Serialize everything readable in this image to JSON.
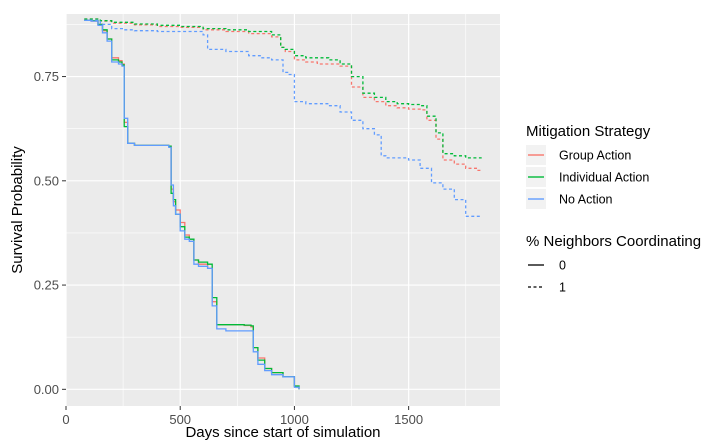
{
  "chart_data": {
    "type": "line",
    "title": "",
    "xlabel": "Days since start of simulation",
    "ylabel": "Survival Probability",
    "xlim": [
      0,
      1900
    ],
    "ylim": [
      -0.04,
      0.9
    ],
    "x_ticks": [
      0,
      500,
      1000,
      1500
    ],
    "y_ticks": [
      0.0,
      0.25,
      0.5,
      0.75
    ],
    "y_tick_labels": [
      "0.00",
      "0.25",
      "0.50",
      "0.75"
    ],
    "grid": true,
    "panel_background": "#ebebeb",
    "legend_position": "right",
    "legends": [
      {
        "title": "Mitigation Strategy",
        "entries": [
          {
            "label": "Group Action",
            "color": "#f8766d"
          },
          {
            "label": "Individual Action",
            "color": "#00ba38"
          },
          {
            "label": "No Action",
            "color": "#619cff"
          }
        ]
      },
      {
        "title": "% Neighbors Coordinating",
        "entries": [
          {
            "label": "0",
            "linetype": "solid"
          },
          {
            "label": "1",
            "linetype": "dashed"
          }
        ]
      }
    ],
    "series": [
      {
        "strategy": "Group Action",
        "coordinating": "0",
        "color": "#f8766d",
        "linetype": "solid",
        "x": [
          80,
          110,
          140,
          160,
          180,
          200,
          230,
          245,
          255,
          270,
          300,
          400,
          450,
          460,
          470,
          480,
          500,
          520,
          540,
          560,
          580,
          620,
          640,
          660,
          700,
          780,
          810,
          820,
          840,
          870,
          900,
          950,
          1000,
          1020
        ],
        "y": [
          0.885,
          0.883,
          0.875,
          0.86,
          0.84,
          0.795,
          0.788,
          0.78,
          0.64,
          0.59,
          0.585,
          0.585,
          0.583,
          0.48,
          0.45,
          0.43,
          0.4,
          0.37,
          0.36,
          0.31,
          0.3,
          0.29,
          0.21,
          0.155,
          0.155,
          0.153,
          0.15,
          0.1,
          0.075,
          0.05,
          0.04,
          0.03,
          0.008,
          0.0
        ]
      },
      {
        "strategy": "Individual Action",
        "coordinating": "0",
        "color": "#00ba38",
        "linetype": "solid",
        "x": [
          80,
          110,
          140,
          160,
          180,
          200,
          230,
          245,
          255,
          270,
          300,
          400,
          450,
          460,
          470,
          480,
          500,
          520,
          540,
          560,
          580,
          620,
          640,
          660,
          700,
          780,
          810,
          820,
          840,
          870,
          900,
          950,
          1000,
          1020
        ],
        "y": [
          0.885,
          0.884,
          0.875,
          0.862,
          0.84,
          0.79,
          0.785,
          0.778,
          0.63,
          0.59,
          0.585,
          0.585,
          0.583,
          0.47,
          0.455,
          0.42,
          0.39,
          0.365,
          0.36,
          0.31,
          0.305,
          0.3,
          0.22,
          0.155,
          0.155,
          0.154,
          0.152,
          0.1,
          0.07,
          0.05,
          0.04,
          0.03,
          0.008,
          0.0
        ]
      },
      {
        "strategy": "No Action",
        "coordinating": "0",
        "color": "#619cff",
        "linetype": "solid",
        "x": [
          80,
          110,
          140,
          160,
          180,
          200,
          230,
          245,
          255,
          270,
          300,
          400,
          450,
          460,
          470,
          480,
          500,
          520,
          540,
          560,
          580,
          620,
          640,
          660,
          700,
          780,
          810,
          820,
          840,
          870,
          900,
          950,
          1000,
          1020
        ],
        "y": [
          0.885,
          0.883,
          0.873,
          0.855,
          0.835,
          0.785,
          0.78,
          0.775,
          0.65,
          0.59,
          0.585,
          0.585,
          0.58,
          0.49,
          0.44,
          0.42,
          0.38,
          0.36,
          0.355,
          0.3,
          0.295,
          0.29,
          0.2,
          0.145,
          0.14,
          0.14,
          0.14,
          0.09,
          0.06,
          0.045,
          0.035,
          0.03,
          0.005,
          0.0
        ]
      },
      {
        "strategy": "Group Action",
        "coordinating": "1",
        "color": "#f8766d",
        "linetype": "dashed",
        "x": [
          80,
          150,
          200,
          300,
          400,
          500,
          600,
          700,
          800,
          900,
          940,
          960,
          1000,
          1050,
          1100,
          1150,
          1200,
          1250,
          1300,
          1350,
          1400,
          1450,
          1500,
          1550,
          1580,
          1620,
          1650,
          1700,
          1750,
          1800,
          1820
        ],
        "y": [
          0.888,
          0.883,
          0.878,
          0.874,
          0.87,
          0.868,
          0.862,
          0.858,
          0.853,
          0.845,
          0.82,
          0.81,
          0.79,
          0.785,
          0.78,
          0.78,
          0.775,
          0.725,
          0.7,
          0.69,
          0.68,
          0.675,
          0.672,
          0.67,
          0.645,
          0.6,
          0.55,
          0.54,
          0.53,
          0.525,
          0.525
        ]
      },
      {
        "strategy": "Individual Action",
        "coordinating": "1",
        "color": "#00ba38",
        "linetype": "dashed",
        "x": [
          80,
          150,
          200,
          300,
          400,
          500,
          600,
          700,
          800,
          900,
          940,
          960,
          1000,
          1050,
          1100,
          1150,
          1200,
          1250,
          1300,
          1350,
          1400,
          1450,
          1500,
          1550,
          1580,
          1620,
          1650,
          1700,
          1750,
          1800,
          1820
        ],
        "y": [
          0.888,
          0.884,
          0.88,
          0.876,
          0.873,
          0.87,
          0.865,
          0.862,
          0.858,
          0.85,
          0.82,
          0.815,
          0.8,
          0.795,
          0.795,
          0.79,
          0.78,
          0.75,
          0.71,
          0.7,
          0.69,
          0.685,
          0.683,
          0.68,
          0.655,
          0.615,
          0.565,
          0.56,
          0.555,
          0.555,
          0.555
        ]
      },
      {
        "strategy": "No Action",
        "coordinating": "1",
        "color": "#619cff",
        "linetype": "dashed",
        "x": [
          80,
          150,
          200,
          250,
          300,
          400,
          600,
          620,
          700,
          800,
          850,
          900,
          950,
          970,
          1000,
          1050,
          1100,
          1150,
          1200,
          1250,
          1300,
          1350,
          1380,
          1400,
          1500,
          1550,
          1600,
          1650,
          1700,
          1750,
          1800,
          1820
        ],
        "y": [
          0.885,
          0.875,
          0.865,
          0.862,
          0.86,
          0.858,
          0.85,
          0.815,
          0.81,
          0.8,
          0.795,
          0.79,
          0.76,
          0.755,
          0.69,
          0.685,
          0.685,
          0.68,
          0.665,
          0.645,
          0.625,
          0.61,
          0.56,
          0.555,
          0.55,
          0.53,
          0.495,
          0.48,
          0.455,
          0.415,
          0.415,
          0.415
        ]
      }
    ]
  }
}
